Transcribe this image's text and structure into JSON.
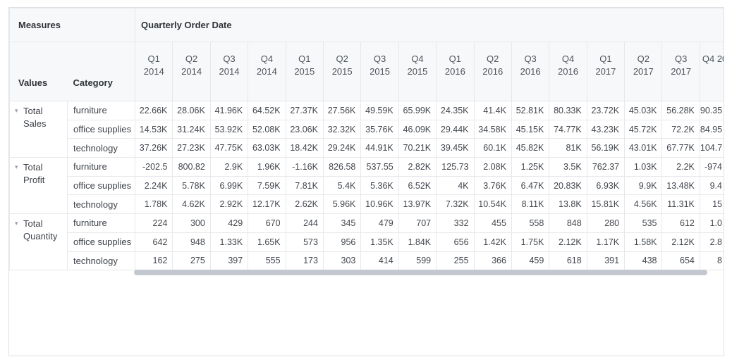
{
  "pivot": {
    "corner_header": "Measures",
    "column_group_header": "Quarterly Order Date",
    "values_header": "Values",
    "category_header": "Category",
    "caret_icon": "▾",
    "colors": {
      "header_bg": "#f7f8f9",
      "border": "#e6e8eb",
      "outer_border": "#dde1e6",
      "scrollbar_thumb": "#c3c8d0",
      "header_text": "#2f3338",
      "cell_text": "#42474e"
    },
    "columns": [
      {
        "line1": "Q1",
        "line2": "2014"
      },
      {
        "line1": "Q2",
        "line2": "2014"
      },
      {
        "line1": "Q3",
        "line2": "2014"
      },
      {
        "line1": "Q4",
        "line2": "2014"
      },
      {
        "line1": "Q1",
        "line2": "2015"
      },
      {
        "line1": "Q2",
        "line2": "2015"
      },
      {
        "line1": "Q3",
        "line2": "2015"
      },
      {
        "line1": "Q4",
        "line2": "2015"
      },
      {
        "line1": "Q1",
        "line2": "2016"
      },
      {
        "line1": "Q2",
        "line2": "2016"
      },
      {
        "line1": "Q3",
        "line2": "2016"
      },
      {
        "line1": "Q4",
        "line2": "2016"
      },
      {
        "line1": "Q1",
        "line2": "2017"
      },
      {
        "line1": "Q2",
        "line2": "2017"
      },
      {
        "line1": "Q3",
        "line2": "2017"
      },
      {
        "line1": "Q4 20",
        "line2": ""
      }
    ],
    "groups": [
      {
        "label": "Total Sales",
        "rows": [
          {
            "category": "furniture",
            "values": [
              "22.66K",
              "28.06K",
              "41.96K",
              "64.52K",
              "27.37K",
              "27.56K",
              "49.59K",
              "65.99K",
              "24.35K",
              "41.4K",
              "52.81K",
              "80.33K",
              "23.72K",
              "45.03K",
              "56.28K",
              "90.35"
            ]
          },
          {
            "category": "office supplies",
            "values": [
              "14.53K",
              "31.24K",
              "53.92K",
              "52.08K",
              "23.06K",
              "32.32K",
              "35.76K",
              "46.09K",
              "29.44K",
              "34.58K",
              "45.15K",
              "74.77K",
              "43.23K",
              "45.72K",
              "72.2K",
              "84.95"
            ]
          },
          {
            "category": "technology",
            "values": [
              "37.26K",
              "27.23K",
              "47.75K",
              "63.03K",
              "18.42K",
              "29.24K",
              "44.91K",
              "70.21K",
              "39.45K",
              "60.1K",
              "45.82K",
              "81K",
              "56.19K",
              "43.01K",
              "67.77K",
              "104.7"
            ]
          }
        ]
      },
      {
        "label": "Total Profit",
        "rows": [
          {
            "category": "furniture",
            "values": [
              "-202.5",
              "800.82",
              "2.9K",
              "1.96K",
              "-1.16K",
              "826.58",
              "537.55",
              "2.82K",
              "125.73",
              "2.08K",
              "1.25K",
              "3.5K",
              "762.37",
              "1.03K",
              "2.2K",
              "-974"
            ]
          },
          {
            "category": "office supplies",
            "values": [
              "2.24K",
              "5.78K",
              "6.99K",
              "7.59K",
              "7.81K",
              "5.4K",
              "5.36K",
              "6.52K",
              "4K",
              "3.76K",
              "6.47K",
              "20.83K",
              "6.93K",
              "9.9K",
              "13.48K",
              "9.4"
            ]
          },
          {
            "category": "technology",
            "values": [
              "1.78K",
              "4.62K",
              "2.92K",
              "12.17K",
              "2.62K",
              "5.96K",
              "10.96K",
              "13.97K",
              "7.32K",
              "10.54K",
              "8.11K",
              "13.8K",
              "15.81K",
              "4.56K",
              "11.31K",
              "15"
            ]
          }
        ]
      },
      {
        "label": "Total Quantity",
        "rows": [
          {
            "category": "furniture",
            "values": [
              "224",
              "300",
              "429",
              "670",
              "244",
              "345",
              "479",
              "707",
              "332",
              "455",
              "558",
              "848",
              "280",
              "535",
              "612",
              "1.0"
            ]
          },
          {
            "category": "office supplies",
            "values": [
              "642",
              "948",
              "1.33K",
              "1.65K",
              "573",
              "956",
              "1.35K",
              "1.84K",
              "656",
              "1.42K",
              "1.75K",
              "2.12K",
              "1.17K",
              "1.58K",
              "2.12K",
              "2.8"
            ]
          },
          {
            "category": "technology",
            "values": [
              "162",
              "275",
              "397",
              "555",
              "173",
              "303",
              "414",
              "599",
              "255",
              "366",
              "459",
              "618",
              "391",
              "438",
              "654",
              "8"
            ]
          }
        ]
      }
    ]
  }
}
